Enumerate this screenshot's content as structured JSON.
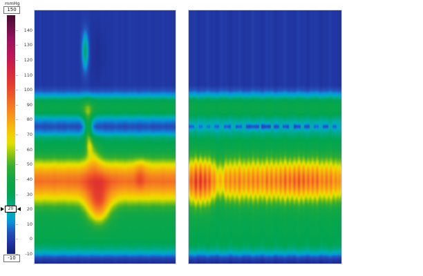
{
  "scale": {
    "title": "mmHg",
    "max": 150,
    "min": -10,
    "max_label": "150",
    "min_label": "-10",
    "marker_value": 20,
    "marker_label": "20",
    "ticks": [
      140,
      130,
      120,
      110,
      100,
      90,
      80,
      70,
      60,
      50,
      40,
      30,
      20,
      10,
      0,
      -10
    ]
  },
  "chart_data": {
    "type": "heatmap",
    "title": "",
    "unit": "mmHg",
    "value_range": [
      -10,
      150
    ],
    "legend_position": "left-colorbar",
    "colorbar_ticks": [
      150,
      140,
      130,
      120,
      110,
      100,
      90,
      80,
      70,
      60,
      50,
      40,
      30,
      20,
      10,
      0,
      -10
    ],
    "colormap": [
      [
        -10,
        "#141f78"
      ],
      [
        -6,
        "#1b2c90"
      ],
      [
        -2,
        "#2138a4"
      ],
      [
        2,
        "#2447b0"
      ],
      [
        6,
        "#1e5ec4"
      ],
      [
        10,
        "#0e8ad6"
      ],
      [
        14,
        "#00a4cc"
      ],
      [
        18,
        "#00acb0"
      ],
      [
        22,
        "#00aa8c"
      ],
      [
        26,
        "#00a76a"
      ],
      [
        30,
        "#00a551"
      ],
      [
        40,
        "#12a746"
      ],
      [
        48,
        "#30ad32"
      ],
      [
        54,
        "#6cbc1c"
      ],
      [
        59,
        "#a8cf0c"
      ],
      [
        64,
        "#e0e000"
      ],
      [
        69,
        "#f2d400"
      ],
      [
        75,
        "#f6b70b"
      ],
      [
        82,
        "#f79a19"
      ],
      [
        89,
        "#f47c21"
      ],
      [
        96,
        "#f05c27"
      ],
      [
        103,
        "#e6402a"
      ],
      [
        110,
        "#dc2d38"
      ],
      [
        118,
        "#cc1c4c"
      ],
      [
        126,
        "#b4155a"
      ],
      [
        134,
        "#981260"
      ],
      [
        142,
        "#6f0f4a"
      ],
      [
        150,
        "#4a0c32"
      ]
    ],
    "panels": [
      {
        "name": "single-swallow-topography",
        "baseline": [
          [
            0,
            -2
          ],
          [
            0.295,
            -2
          ],
          [
            0.315,
            4
          ],
          [
            0.335,
            14
          ],
          [
            0.355,
            30
          ],
          [
            0.38,
            36
          ],
          [
            0.4,
            32
          ],
          [
            0.415,
            22
          ],
          [
            0.435,
            10
          ],
          [
            0.458,
            3
          ],
          [
            0.48,
            10
          ],
          [
            0.5,
            24
          ],
          [
            0.53,
            33
          ],
          [
            0.555,
            38
          ],
          [
            0.58,
            48
          ],
          [
            0.6,
            60
          ],
          [
            0.625,
            74
          ],
          [
            0.65,
            86
          ],
          [
            0.675,
            92
          ],
          [
            0.7,
            84
          ],
          [
            0.73,
            70
          ],
          [
            0.755,
            58
          ],
          [
            0.775,
            48
          ],
          [
            0.8,
            40
          ],
          [
            0.83,
            36
          ],
          [
            0.9,
            33
          ],
          [
            0.932,
            26
          ],
          [
            0.952,
            18
          ],
          [
            0.968,
            8
          ],
          [
            0.985,
            -2
          ],
          [
            1,
            -6
          ]
        ],
        "features": [
          [
            0.357,
            0.16,
            0.017,
            0.055,
            27
          ],
          [
            0.45,
            0.17,
            0.032,
            0.09,
            -3
          ],
          [
            0.375,
            0.395,
            0.032,
            0.03,
            16
          ],
          [
            0.378,
            0.465,
            0.02,
            0.042,
            30
          ],
          [
            0.39,
            0.535,
            0.018,
            0.025,
            16
          ],
          [
            0.415,
            0.575,
            0.035,
            0.045,
            16
          ],
          [
            0.44,
            0.685,
            0.065,
            0.05,
            10
          ],
          [
            0.45,
            0.775,
            0.06,
            0.05,
            42
          ],
          [
            0.745,
            0.665,
            0.022,
            0.035,
            10
          ],
          [
            0.75,
            0.615,
            0.03,
            0.03,
            6
          ]
        ],
        "column_noise": {
          "amp": 0.7,
          "f1": 57,
          "f2": 131
        }
      },
      {
        "name": "repetitive-contraction-topography",
        "baseline": [
          [
            0,
            -2
          ],
          [
            0.295,
            -2
          ],
          [
            0.315,
            5
          ],
          [
            0.335,
            16
          ],
          [
            0.355,
            30
          ],
          [
            0.38,
            36
          ],
          [
            0.405,
            32
          ],
          [
            0.43,
            22
          ],
          [
            0.458,
            16
          ],
          [
            0.48,
            22
          ],
          [
            0.51,
            30
          ],
          [
            0.545,
            36
          ],
          [
            0.575,
            44
          ],
          [
            0.6,
            54
          ],
          [
            0.625,
            64
          ],
          [
            0.65,
            72
          ],
          [
            0.675,
            76
          ],
          [
            0.7,
            70
          ],
          [
            0.725,
            60
          ],
          [
            0.75,
            50
          ],
          [
            0.78,
            40
          ],
          [
            0.82,
            35
          ],
          [
            0.88,
            32
          ],
          [
            0.925,
            29
          ],
          [
            0.95,
            20
          ],
          [
            0.968,
            8
          ],
          [
            0.985,
            -2
          ],
          [
            1,
            -6
          ]
        ],
        "features": [
          [
            0.07,
            0.7,
            0.055,
            0.08,
            12
          ],
          [
            0.21,
            0.67,
            0.02,
            0.09,
            -8
          ],
          [
            0.75,
            0.672,
            0.12,
            0.05,
            5
          ]
        ],
        "stripes": {
          "sigma_x": 0.0075,
          "center_y": 0.672,
          "sigma_y": 0.062,
          "items": [
            [
              0.015,
              14
            ],
            [
              0.045,
              22
            ],
            [
              0.075,
              24
            ],
            [
              0.105,
              20
            ],
            [
              0.135,
              18
            ],
            [
              0.165,
              10
            ],
            [
              0.205,
              9
            ],
            [
              0.24,
              13
            ],
            [
              0.27,
              15
            ],
            [
              0.3,
              13
            ],
            [
              0.33,
              15
            ],
            [
              0.36,
              13
            ],
            [
              0.39,
              15
            ],
            [
              0.42,
              14
            ],
            [
              0.45,
              16
            ],
            [
              0.48,
              14
            ],
            [
              0.51,
              17
            ],
            [
              0.54,
              15
            ],
            [
              0.57,
              17
            ],
            [
              0.6,
              16
            ],
            [
              0.63,
              18
            ],
            [
              0.66,
              17
            ],
            [
              0.69,
              20
            ],
            [
              0.72,
              19
            ],
            [
              0.75,
              18
            ],
            [
              0.78,
              17
            ],
            [
              0.81,
              15
            ],
            [
              0.84,
              16
            ],
            [
              0.87,
              13
            ],
            [
              0.9,
              15
            ],
            [
              0.93,
              13
            ],
            [
              0.96,
              11
            ],
            [
              0.985,
              9
            ]
          ]
        },
        "dashes": {
          "center_y": 0.458,
          "sigma_y": 0.009,
          "segments": [
            [
              0.0,
              0.035,
              -10
            ],
            [
              0.065,
              0.09,
              -8
            ],
            [
              0.115,
              0.14,
              -9
            ],
            [
              0.165,
              0.195,
              -8
            ],
            [
              0.23,
              0.275,
              -10
            ],
            [
              0.305,
              0.345,
              -11
            ],
            [
              0.375,
              0.46,
              -12
            ],
            [
              0.475,
              0.535,
              -13
            ],
            [
              0.555,
              0.59,
              -11
            ],
            [
              0.615,
              0.655,
              -12
            ],
            [
              0.685,
              0.73,
              -13
            ],
            [
              0.755,
              0.79,
              -11
            ],
            [
              0.815,
              0.85,
              -10
            ],
            [
              0.875,
              0.91,
              -11
            ],
            [
              0.94,
              0.965,
              -9
            ]
          ]
        },
        "column_noise": {
          "amp": 1.5,
          "f1": 63,
          "f2": 149
        }
      }
    ]
  }
}
